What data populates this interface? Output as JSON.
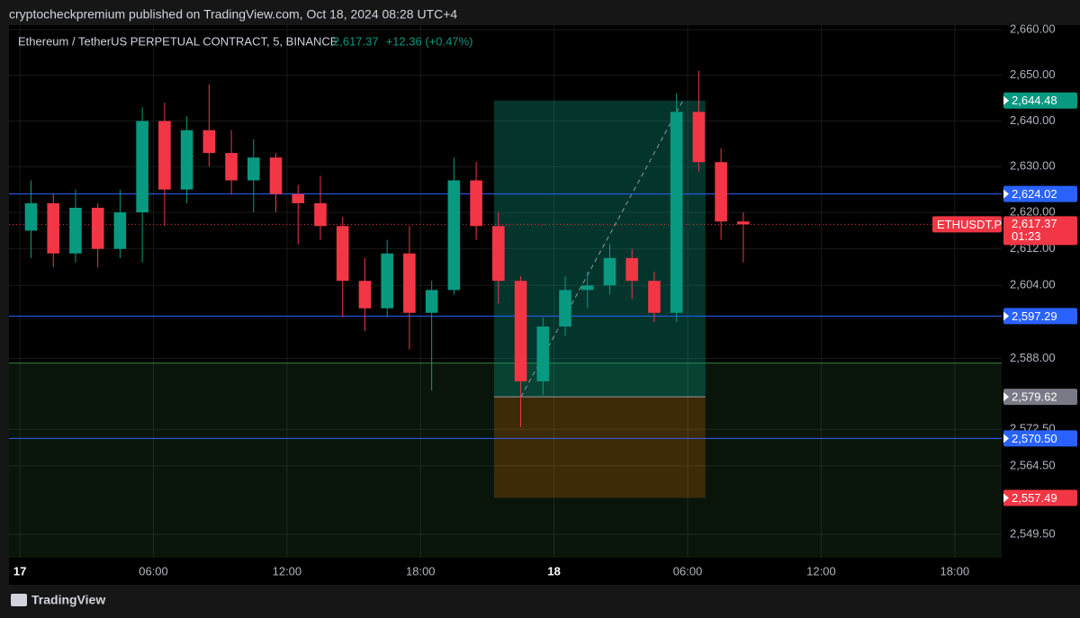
{
  "header": "cryptocheckpremium published on TradingView.com, Oct 18, 2024 08:28 UTC+4",
  "footer": "TradingView",
  "chart_data": {
    "type": "candlestick",
    "symbol": "Ethereum / TetherUS PERPETUAL CONTRACT, 5, BINANCE",
    "change": "+12.36 (+0.47%)",
    "up_color": "#089981",
    "down_color": "#f23645",
    "x": [
      0.5,
      1.5,
      2.5,
      3.5,
      4.5,
      5.5,
      6.5,
      7.5,
      8.5,
      9.5,
      10.5,
      11.5,
      12.5,
      13.5,
      14.5,
      15.5,
      16.5,
      17.5,
      18.5,
      19.5,
      20.5,
      21.5,
      22.5,
      23.5,
      24.5,
      25.5,
      26.5,
      27.5,
      28.5,
      29.5,
      30.5,
      31.5,
      32.5
    ],
    "open": [
      2616,
      2622,
      2611,
      2621,
      2612,
      2620,
      2640,
      2625,
      2638,
      2633,
      2627,
      2632,
      2624,
      2622,
      2617,
      2605,
      2599,
      2611,
      2598,
      2603,
      2627,
      2617,
      2605,
      2583,
      2595,
      2603,
      2604,
      2610,
      2605,
      2598,
      2642,
      2631,
      2618
    ],
    "high": [
      2627,
      2624,
      2625,
      2622,
      2625,
      2643,
      2644,
      2641,
      2648,
      2638,
      2636,
      2633,
      2626,
      2628,
      2619,
      2610,
      2614,
      2617,
      2605,
      2632,
      2631,
      2620,
      2606,
      2597,
      2606,
      2607,
      2613,
      2612,
      2607,
      2646,
      2651,
      2634,
      2620
    ],
    "low": [
      2610,
      2608,
      2609,
      2608,
      2610,
      2609,
      2617,
      2622,
      2630,
      2624,
      2620,
      2620,
      2613,
      2614,
      2597,
      2594,
      2597,
      2590,
      2581,
      2602,
      2614,
      2600,
      2573,
      2580,
      2593,
      2599,
      2602,
      2601,
      2596,
      2596,
      2629,
      2614,
      2609
    ],
    "close": [
      2622,
      2611,
      2621,
      2612,
      2620,
      2640,
      2625,
      2638,
      2633,
      2627,
      2632,
      2624,
      2622,
      2617,
      2605,
      2599,
      2611,
      2598,
      2603,
      2627,
      2617,
      2605,
      2583,
      2595,
      2603,
      2604,
      2610,
      2605,
      2598,
      2642,
      2631,
      2618,
      2617.37
    ],
    "xlim": [
      -0.49,
      44.11
    ],
    "xticks": [
      {
        "value": 0,
        "label": "17"
      },
      {
        "value": 6,
        "label": "06:00"
      },
      {
        "value": 12,
        "label": "12:00"
      },
      {
        "value": 18,
        "label": "18:00"
      },
      {
        "value": 24,
        "label": "18"
      },
      {
        "value": 30,
        "label": "06:00"
      },
      {
        "value": 36,
        "label": "12:00"
      },
      {
        "value": 42,
        "label": "18:00"
      }
    ],
    "ylim": [
      2544.38,
      2660.98
    ],
    "yticks": [
      {
        "value": 2660,
        "label": "2,660.00"
      },
      {
        "value": 2650,
        "label": "2,650.00"
      },
      {
        "value": 2640,
        "label": "2,640.00"
      },
      {
        "value": 2630,
        "label": "2,630.00"
      },
      {
        "value": 2620,
        "label": "2,620.00"
      },
      {
        "value": 2612,
        "label": "2,612.00"
      },
      {
        "value": 2604,
        "label": "2,604.00"
      },
      {
        "value": 2588,
        "label": "2,588.00"
      },
      {
        "value": 2572.5,
        "label": "2,572.50"
      },
      {
        "value": 2564.5,
        "label": "2,564.50"
      },
      {
        "value": 2549.5,
        "label": "2,549.50"
      }
    ],
    "grid": true,
    "hlines": [
      {
        "value": 2624.02,
        "label": "2,624.02",
        "color": "#2962ff"
      },
      {
        "value": 2597.29,
        "label": "2,597.29",
        "color": "#2962ff"
      },
      {
        "value": 2570.5,
        "label": "2,570.50",
        "color": "#2962ff"
      }
    ],
    "zone": {
      "top": 2587,
      "color": "#4caf50"
    },
    "position": {
      "start": 21.3,
      "end": 30.8,
      "target": {
        "value": 2644.48,
        "label": "2,644.48",
        "color": "#089981"
      },
      "entry": {
        "value": 2579.62,
        "label": "2,579.62",
        "color": "#787b86"
      },
      "stop": {
        "value": 2557.49,
        "label": "2,557.49",
        "color": "#f23645"
      }
    },
    "last_price": {
      "value": 2617.37,
      "label": "2,617.37",
      "ticker": "ETHUSDT.P",
      "countdown": "01:23",
      "color": "#f23645"
    }
  }
}
